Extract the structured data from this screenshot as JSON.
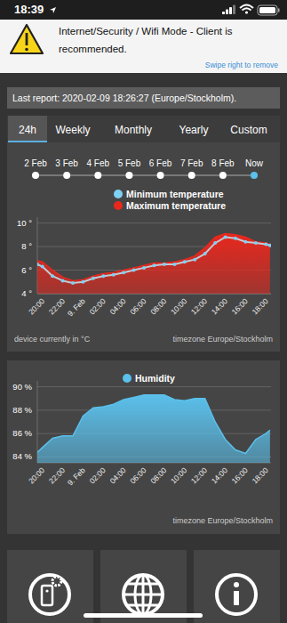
{
  "status_bar": {
    "time": "18:39"
  },
  "banner": {
    "lines": [
      "Internet/Security / Wifi Mode - Client is",
      "recommended."
    ],
    "action": "Swipe right to remove"
  },
  "last_report": "Last report: 2020-02-09 18:26:27 (Europe/Stockholm).",
  "tabs": {
    "items": [
      "24h",
      "Weekly",
      "Monthly",
      "Yearly",
      "Custom"
    ],
    "selected": "24h"
  },
  "timeline": {
    "items": [
      "2 Feb",
      "3 Feb",
      "4 Feb",
      "5 Feb",
      "6 Feb",
      "7 Feb",
      "8 Feb",
      "Now"
    ],
    "selected": "Now"
  },
  "chart_data": [
    {
      "type": "line",
      "x": [
        -4.5,
        -4,
        -3,
        -2,
        -1,
        0,
        1,
        2,
        3,
        4,
        5,
        6,
        7,
        8,
        9,
        10,
        11,
        12,
        13,
        14,
        15,
        16,
        17,
        18,
        18.4
      ],
      "series": [
        {
          "name": "Minimum temperature",
          "color": "#7fd0f5",
          "type": "line",
          "marker": "circle",
          "values": [
            6.5,
            6.3,
            5.5,
            5.1,
            4.9,
            5.0,
            5.3,
            5.5,
            5.6,
            5.8,
            6.0,
            6.2,
            6.4,
            6.5,
            6.5,
            6.7,
            6.9,
            7.4,
            8.3,
            8.8,
            8.7,
            8.4,
            8.3,
            8.2,
            8.1
          ]
        },
        {
          "name": "Maximum temperature",
          "color": "#e8281e",
          "type": "area",
          "marker": "none",
          "values": [
            6.8,
            6.7,
            6.0,
            5.4,
            5.1,
            5.2,
            5.5,
            5.7,
            5.8,
            6.0,
            6.2,
            6.4,
            6.6,
            6.6,
            6.7,
            6.9,
            7.2,
            7.9,
            8.8,
            9.1,
            9.0,
            8.8,
            8.4,
            8.3,
            8.2
          ]
        }
      ],
      "xlim": [
        -4.5,
        18.5
      ],
      "xticks": [
        {
          "value": -4,
          "label": "20:00"
        },
        {
          "value": -2,
          "label": "22:00"
        },
        {
          "value": 0,
          "label": "9. Feb"
        },
        {
          "value": 2,
          "label": "02:00"
        },
        {
          "value": 4,
          "label": "04:00"
        },
        {
          "value": 6,
          "label": "06:00"
        },
        {
          "value": 8,
          "label": "08:00"
        },
        {
          "value": 10,
          "label": "10:00"
        },
        {
          "value": 12,
          "label": "12:00"
        },
        {
          "value": 14,
          "label": "14:00"
        },
        {
          "value": 16,
          "label": "16:00"
        },
        {
          "value": 18,
          "label": "18:00"
        }
      ],
      "ylim": [
        4,
        10.5
      ],
      "yticks": [
        {
          "value": 4,
          "label": "4 °"
        },
        {
          "value": 6,
          "label": "6 °"
        },
        {
          "value": 8,
          "label": "8 °"
        },
        {
          "value": 10,
          "label": "10 °"
        }
      ],
      "grid": true,
      "legend": "top",
      "annotations": [
        "device currently in °C",
        "timezone Europe/Stockholm"
      ]
    },
    {
      "type": "area",
      "x": [
        -4.5,
        -4,
        -3,
        -2,
        -1,
        0,
        1,
        2,
        3,
        4,
        5,
        6,
        7,
        8,
        9,
        10,
        11,
        12,
        13,
        14,
        15,
        16,
        17,
        18,
        18.4
      ],
      "series": [
        {
          "name": "Humidity",
          "color": "#5bc0eb",
          "marker": "none",
          "values": [
            84.4,
            84.8,
            85.6,
            85.8,
            85.8,
            87.5,
            88.2,
            88.3,
            88.5,
            88.9,
            89.1,
            89.3,
            89.3,
            89.3,
            88.9,
            88.8,
            89.0,
            89.0,
            87.0,
            85.5,
            84.6,
            84.3,
            85.5,
            86.0,
            86.3
          ]
        }
      ],
      "xlim": [
        -4.5,
        18.5
      ],
      "xticks": [
        {
          "value": -4,
          "label": "20:00"
        },
        {
          "value": -2,
          "label": "22:00"
        },
        {
          "value": 0,
          "label": "9. Feb"
        },
        {
          "value": 2,
          "label": "02:00"
        },
        {
          "value": 4,
          "label": "04:00"
        },
        {
          "value": 6,
          "label": "06:00"
        },
        {
          "value": 8,
          "label": "08:00"
        },
        {
          "value": 10,
          "label": "10:00"
        },
        {
          "value": 12,
          "label": "12:00"
        },
        {
          "value": 14,
          "label": "14:00"
        },
        {
          "value": 16,
          "label": "16:00"
        },
        {
          "value": 18,
          "label": "18:00"
        }
      ],
      "ylim": [
        83.5,
        90.5
      ],
      "yticks": [
        {
          "value": 84,
          "label": "84 %"
        },
        {
          "value": 86,
          "label": "86 %"
        },
        {
          "value": 88,
          "label": "88 %"
        },
        {
          "value": 90,
          "label": "90 %"
        }
      ],
      "grid": true,
      "legend": "top",
      "annotations": [
        "timezone Europe/Stockholm"
      ]
    }
  ]
}
